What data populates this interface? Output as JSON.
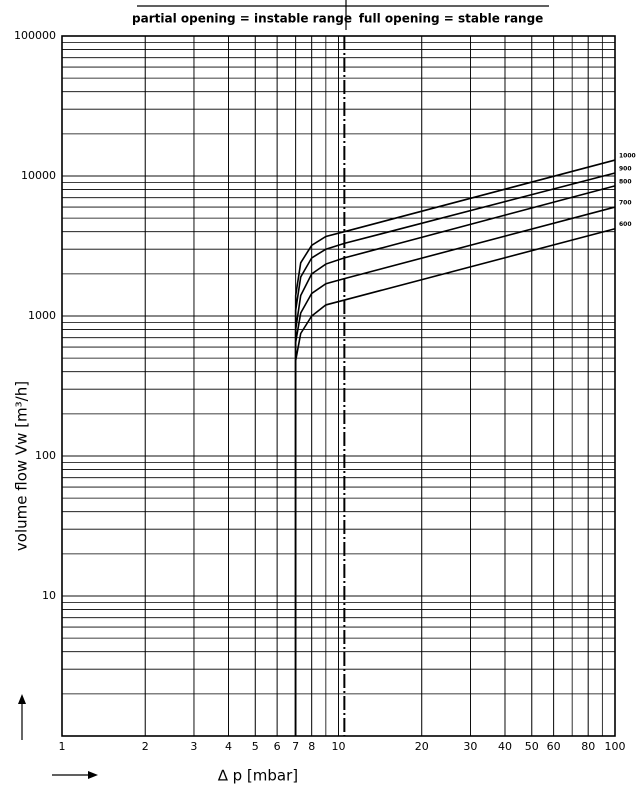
{
  "chart_data": {
    "type": "line",
    "header_left": "partial opening = instable range",
    "header_right": "full opening = stable range",
    "x_label": "∆ p [mbar]",
    "y_label": "volume flow Vw [m³/h]",
    "log_x": true,
    "log_y": true,
    "grid": true,
    "color": "#000000",
    "boundary_x": 10.5,
    "xlim": [
      1,
      100
    ],
    "xticks": [
      1,
      2,
      3,
      4,
      5,
      6,
      7,
      8,
      10,
      20,
      30,
      40,
      50,
      60,
      80,
      100
    ],
    "ylim": [
      1,
      100000
    ],
    "yticks": [
      10,
      100,
      1000,
      10000,
      100000
    ],
    "x": [
      7,
      7,
      7.3,
      8,
      9,
      10.5,
      100
    ],
    "series": [
      {
        "name": "1000",
        "values": [
          1,
          1400,
          2400,
          3200,
          3700,
          4000,
          13000
        ]
      },
      {
        "name": "900",
        "values": [
          1,
          1100,
          1900,
          2600,
          3000,
          3300,
          10500
        ]
      },
      {
        "name": "800",
        "values": [
          1,
          800,
          1400,
          2000,
          2350,
          2600,
          8500
        ]
      },
      {
        "name": "700",
        "values": [
          1,
          650,
          1050,
          1450,
          1700,
          1850,
          6000
        ]
      },
      {
        "name": "600",
        "values": [
          1,
          480,
          750,
          1000,
          1200,
          1300,
          4200
        ]
      }
    ]
  }
}
